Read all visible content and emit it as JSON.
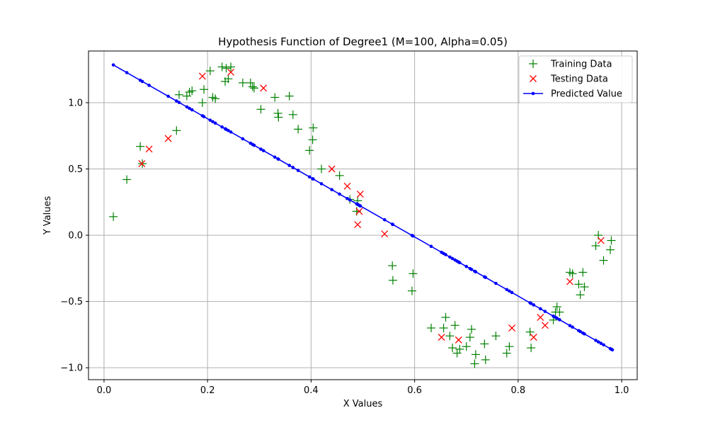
{
  "chart_data": {
    "type": "scatter",
    "title": "Hypothesis Function of Degree1 (M=100, Alpha=0.05)",
    "xlabel": "X Values",
    "ylabel": "Y Values",
    "xlim": [
      -0.03,
      1.03
    ],
    "ylim": [
      -1.09,
      1.39
    ],
    "xticks": [
      0.0,
      0.2,
      0.4,
      0.6,
      0.8,
      1.0
    ],
    "xtick_labels": [
      "0.0",
      "0.2",
      "0.4",
      "0.6",
      "0.8",
      "1.0"
    ],
    "yticks": [
      -1.0,
      -0.5,
      0.0,
      0.5,
      1.0
    ],
    "ytick_labels": [
      "−1.0",
      "−0.5",
      "0.0",
      "0.5",
      "1.0"
    ],
    "grid": true,
    "legend_position": "top-right",
    "series": [
      {
        "name": "Training Data",
        "marker": "plus",
        "color": "#008000",
        "points": [
          [
            0.018,
            0.14
          ],
          [
            0.044,
            0.42
          ],
          [
            0.07,
            0.67
          ],
          [
            0.074,
            0.54
          ],
          [
            0.14,
            0.79
          ],
          [
            0.145,
            1.06
          ],
          [
            0.16,
            1.05
          ],
          [
            0.165,
            1.08
          ],
          [
            0.17,
            1.09
          ],
          [
            0.19,
            1.0
          ],
          [
            0.193,
            1.1
          ],
          [
            0.205,
            1.24
          ],
          [
            0.21,
            1.04
          ],
          [
            0.215,
            1.03
          ],
          [
            0.228,
            1.27
          ],
          [
            0.234,
            1.16
          ],
          [
            0.236,
            1.26
          ],
          [
            0.24,
            1.18
          ],
          [
            0.245,
            1.27
          ],
          [
            0.268,
            1.15
          ],
          [
            0.283,
            1.15
          ],
          [
            0.287,
            1.12
          ],
          [
            0.29,
            1.11
          ],
          [
            0.303,
            0.95
          ],
          [
            0.33,
            1.04
          ],
          [
            0.336,
            0.92
          ],
          [
            0.337,
            0.89
          ],
          [
            0.358,
            1.05
          ],
          [
            0.365,
            0.91
          ],
          [
            0.375,
            0.8
          ],
          [
            0.397,
            0.64
          ],
          [
            0.403,
            0.72
          ],
          [
            0.404,
            0.81
          ],
          [
            0.42,
            0.5
          ],
          [
            0.455,
            0.45
          ],
          [
            0.475,
            0.27
          ],
          [
            0.488,
            0.18
          ],
          [
            0.49,
            0.26
          ],
          [
            0.557,
            -0.23
          ],
          [
            0.558,
            -0.34
          ],
          [
            0.595,
            -0.42
          ],
          [
            0.597,
            -0.29
          ],
          [
            0.632,
            -0.7
          ],
          [
            0.656,
            -0.7
          ],
          [
            0.66,
            -0.62
          ],
          [
            0.668,
            -0.76
          ],
          [
            0.673,
            -0.85
          ],
          [
            0.678,
            -0.68
          ],
          [
            0.682,
            -0.89
          ],
          [
            0.687,
            -0.86
          ],
          [
            0.7,
            -0.84
          ],
          [
            0.707,
            -0.77
          ],
          [
            0.71,
            -0.71
          ],
          [
            0.716,
            -0.97
          ],
          [
            0.718,
            -0.9
          ],
          [
            0.735,
            -0.82
          ],
          [
            0.737,
            -0.94
          ],
          [
            0.757,
            -0.76
          ],
          [
            0.778,
            -0.89
          ],
          [
            0.783,
            -0.84
          ],
          [
            0.823,
            -0.73
          ],
          [
            0.825,
            -0.85
          ],
          [
            0.868,
            -0.64
          ],
          [
            0.872,
            -0.58
          ],
          [
            0.875,
            -0.54
          ],
          [
            0.88,
            -0.58
          ],
          [
            0.9,
            -0.28
          ],
          [
            0.905,
            -0.29
          ],
          [
            0.917,
            -0.37
          ],
          [
            0.92,
            -0.45
          ],
          [
            0.925,
            -0.28
          ],
          [
            0.928,
            -0.39
          ],
          [
            0.95,
            -0.08
          ],
          [
            0.955,
            0.0
          ],
          [
            0.965,
            -0.19
          ],
          [
            0.978,
            -0.11
          ],
          [
            0.98,
            -0.04
          ]
        ]
      },
      {
        "name": "Testing Data",
        "marker": "x",
        "color": "#ff0000",
        "points": [
          [
            0.073,
            0.54
          ],
          [
            0.087,
            0.65
          ],
          [
            0.124,
            0.73
          ],
          [
            0.19,
            1.2
          ],
          [
            0.245,
            1.23
          ],
          [
            0.308,
            1.11
          ],
          [
            0.44,
            0.5
          ],
          [
            0.47,
            0.37
          ],
          [
            0.49,
            0.08
          ],
          [
            0.495,
            0.31
          ],
          [
            0.493,
            0.18
          ],
          [
            0.542,
            0.01
          ],
          [
            0.652,
            -0.77
          ],
          [
            0.685,
            -0.79
          ],
          [
            0.788,
            -0.7
          ],
          [
            0.83,
            -0.77
          ],
          [
            0.843,
            -0.62
          ],
          [
            0.852,
            -0.68
          ],
          [
            0.9,
            -0.35
          ],
          [
            0.96,
            -0.04
          ]
        ]
      },
      {
        "name": "Predicted Value",
        "marker": "line-dot",
        "color": "#0000ff",
        "line": {
          "x0": 0.018,
          "y0": 1.285,
          "x1": 0.982,
          "y1": -0.865
        },
        "x": [
          0.018,
          0.044,
          0.07,
          0.074,
          0.087,
          0.124,
          0.14,
          0.145,
          0.16,
          0.165,
          0.17,
          0.19,
          0.193,
          0.205,
          0.21,
          0.215,
          0.228,
          0.234,
          0.236,
          0.24,
          0.245,
          0.268,
          0.283,
          0.287,
          0.29,
          0.303,
          0.308,
          0.33,
          0.336,
          0.337,
          0.358,
          0.365,
          0.375,
          0.397,
          0.403,
          0.404,
          0.42,
          0.44,
          0.455,
          0.47,
          0.475,
          0.488,
          0.49,
          0.493,
          0.495,
          0.542,
          0.557,
          0.558,
          0.595,
          0.597,
          0.632,
          0.652,
          0.656,
          0.66,
          0.668,
          0.673,
          0.678,
          0.682,
          0.685,
          0.687,
          0.7,
          0.707,
          0.71,
          0.716,
          0.718,
          0.735,
          0.737,
          0.757,
          0.778,
          0.783,
          0.788,
          0.823,
          0.825,
          0.83,
          0.843,
          0.852,
          0.868,
          0.872,
          0.875,
          0.88,
          0.9,
          0.905,
          0.917,
          0.92,
          0.925,
          0.928,
          0.95,
          0.955,
          0.96,
          0.965,
          0.978,
          0.98,
          0.982
        ]
      }
    ]
  }
}
